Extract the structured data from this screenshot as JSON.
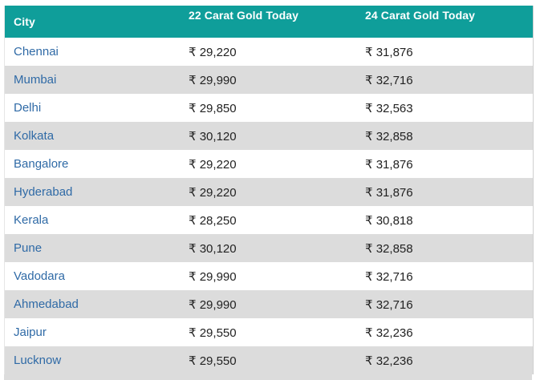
{
  "table": {
    "headers": {
      "city": "City",
      "gold22": "22 Carat Gold Today",
      "gold24": "24 Carat Gold Today"
    },
    "rows": [
      {
        "city": "Chennai",
        "gold22": "₹ 29,220",
        "gold24": "₹ 31,876"
      },
      {
        "city": "Mumbai",
        "gold22": "₹ 29,990",
        "gold24": "₹ 32,716"
      },
      {
        "city": "Delhi",
        "gold22": "₹ 29,850",
        "gold24": "₹ 32,563"
      },
      {
        "city": "Kolkata",
        "gold22": "₹ 30,120",
        "gold24": "₹ 32,858"
      },
      {
        "city": "Bangalore",
        "gold22": "₹ 29,220",
        "gold24": "₹ 31,876"
      },
      {
        "city": "Hyderabad",
        "gold22": "₹ 29,220",
        "gold24": "₹ 31,876"
      },
      {
        "city": "Kerala",
        "gold22": "₹ 28,250",
        "gold24": "₹ 30,818"
      },
      {
        "city": "Pune",
        "gold22": "₹ 30,120",
        "gold24": "₹ 32,858"
      },
      {
        "city": "Vadodara",
        "gold22": "₹ 29,990",
        "gold24": "₹ 32,716"
      },
      {
        "city": "Ahmedabad",
        "gold22": "₹ 29,990",
        "gold24": "₹ 32,716"
      },
      {
        "city": "Jaipur",
        "gold22": "₹ 29,550",
        "gold24": "₹ 32,236"
      },
      {
        "city": "Lucknow",
        "gold22": "₹ 29,550",
        "gold24": "₹ 32,236"
      }
    ]
  },
  "colors": {
    "header_bg": "#0f9e9a",
    "header_text": "#ffffff",
    "city_link": "#2f6aa6",
    "stripe": "#dcdcdc"
  }
}
